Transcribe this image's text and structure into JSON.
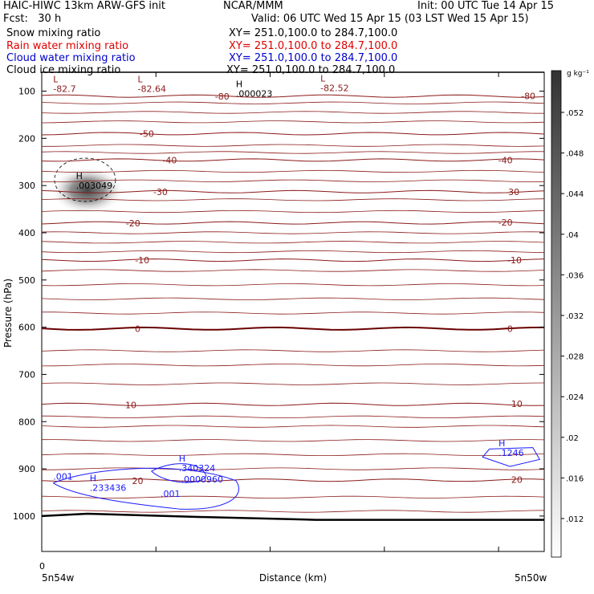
{
  "header": {
    "model": "HAIC-HIWC 13km ARW-GFS init",
    "org": "NCAR/MMM",
    "init": "Init: 00 UTC Tue 14 Apr 15",
    "fcst": "Fcst:   30 h",
    "valid": "Valid: 06 UTC Wed 15 Apr 15 (03 LST Wed 15 Apr 15)"
  },
  "fields": [
    {
      "name": "Snow mixing ratio",
      "xy": "XY= 251.0,100.0 to 284.7,100.0",
      "color": "#000000"
    },
    {
      "name": "Rain water mixing ratio",
      "xy": "XY= 251.0,100.0 to 284.7,100.0",
      "color": "#e00000"
    },
    {
      "name": "Cloud water mixing ratio",
      "xy": "XY= 251.0,100.0 to 284.7,100.0",
      "color": "#0000cc"
    },
    {
      "name": "Cloud ice mixing ratio",
      "xy": "XY= 251.0,100.0 to 284.7,100.0",
      "color": "#000000"
    }
  ],
  "chart_data": {
    "type": "cross-section",
    "ylabel": "Pressure (hPa)",
    "xlabel": "Distance (km)",
    "x_range_km": [
      0,
      220
    ],
    "x_start_tick": "0",
    "x_left_label": "5n54w",
    "x_right_label": "5n50w",
    "yticks": [
      100,
      200,
      300,
      400,
      500,
      600,
      700,
      800,
      900,
      1000
    ],
    "ylim": [
      1075,
      60
    ],
    "colorbar": {
      "unit": "g kg⁻¹",
      "ticks": [
        ".052",
        ".048",
        ".044",
        ".04",
        ".036",
        ".032",
        ".028",
        ".024",
        ".02",
        ".016",
        ".012"
      ]
    },
    "temperature_contour_labels": [
      {
        "value": "-80",
        "x_km": 79,
        "p": 111
      },
      {
        "value": "-80",
        "x_km": 213,
        "p": 110
      },
      {
        "value": "-50",
        "x_km": 46,
        "p": 190
      },
      {
        "value": "-40",
        "x_km": 56,
        "p": 246
      },
      {
        "value": "-40",
        "x_km": 203,
        "p": 246
      },
      {
        "value": "-30",
        "x_km": 52,
        "p": 313
      },
      {
        "value": "-30",
        "x_km": 206,
        "p": 313
      },
      {
        "value": "-20",
        "x_km": 40,
        "p": 380
      },
      {
        "value": "-20",
        "x_km": 203,
        "p": 378
      },
      {
        "value": "-10",
        "x_km": 44,
        "p": 458
      },
      {
        "value": "-10",
        "x_km": 207,
        "p": 458
      },
      {
        "value": "0",
        "x_km": 42,
        "p": 603
      },
      {
        "value": "0",
        "x_km": 205,
        "p": 603
      },
      {
        "value": "10",
        "x_km": 39,
        "p": 765
      },
      {
        "value": "10",
        "x_km": 208,
        "p": 762
      },
      {
        "value": "20",
        "x_km": 42,
        "p": 925
      },
      {
        "value": "20",
        "x_km": 208,
        "p": 923
      }
    ],
    "extrema_labels": [
      {
        "mark": "L",
        "value": "-82.7",
        "x_km": 5,
        "p": 95
      },
      {
        "mark": "L",
        "value": "-82.64",
        "x_km": 42,
        "p": 95
      },
      {
        "mark": "H",
        "value": ".000023",
        "x_km": 85,
        "p": 105
      },
      {
        "mark": "L",
        "value": "-82.52",
        "x_km": 122,
        "p": 93
      },
      {
        "mark": "H",
        "value": ".003049",
        "x_km": 15,
        "p": 300
      },
      {
        "mark": "H",
        "value": ".233436",
        "x_km": 21,
        "p": 940
      },
      {
        "mark": "H",
        "value": ".340324",
        "x_km": 60,
        "p": 898
      },
      {
        "mark": "",
        "value": ".0000960",
        "x_km": 61,
        "p": 922
      },
      {
        "mark": "",
        "value": ".001",
        "x_km": 5,
        "p": 916
      },
      {
        "mark": "",
        "value": ".001",
        "x_km": 52,
        "p": 953
      },
      {
        "mark": "H",
        "value": ".1246",
        "x_km": 200,
        "p": 866
      }
    ],
    "shading_max": {
      "value": ".003049",
      "x_km": 20,
      "p": 310
    }
  }
}
